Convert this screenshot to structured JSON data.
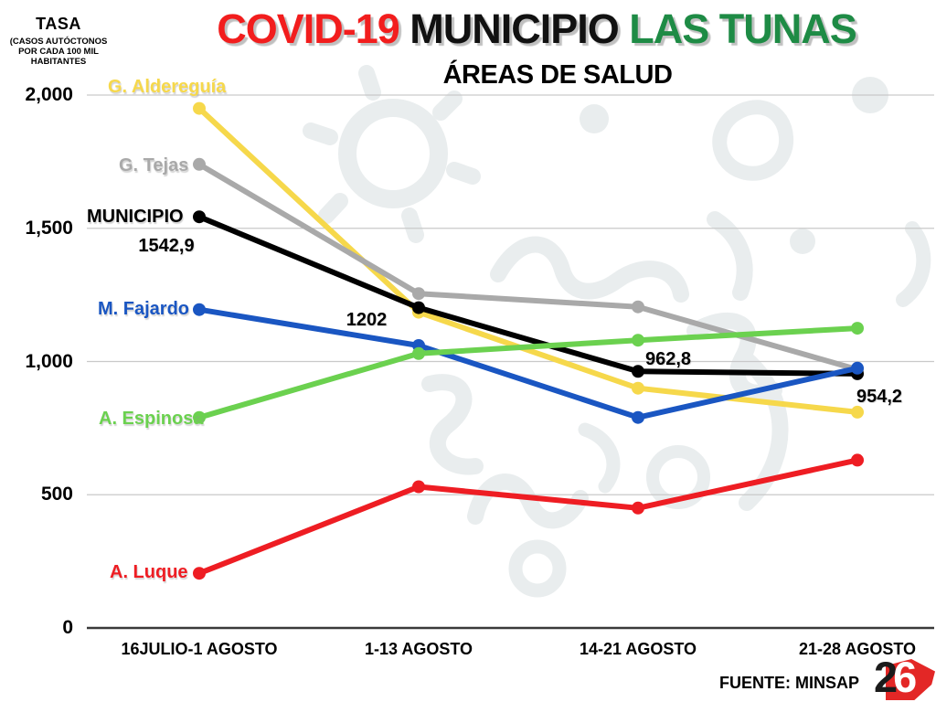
{
  "header": {
    "title_part1": "COVID-19",
    "title_part2": " MUNICIPIO ",
    "title_part3": "LAS TUNAS",
    "title_color1": "#F21D1D",
    "title_color2": "#111111",
    "title_color3": "#1E8B45",
    "subtitle": "ÁREAS DE SALUD"
  },
  "y_axis": {
    "title": "TASA",
    "subtitle_lines": [
      "(CASOS AUTÓCTONOS",
      "POR CADA 100 MIL",
      "HABITANTES"
    ],
    "ticks": [
      {
        "label": "2,000",
        "value": 2000
      },
      {
        "label": "1,500",
        "value": 1500
      },
      {
        "label": "1,000",
        "value": 1000
      },
      {
        "label": "500",
        "value": 500
      },
      {
        "label": "0",
        "value": 0
      }
    ]
  },
  "footer": {
    "source": "FUENTE: MINSAP",
    "logo": {
      "digit_dark": "2",
      "digit_light": "6",
      "bg_color": "#E32726",
      "dark_color": "#1b1b1b",
      "light_color": "#ffffff"
    }
  },
  "chart_data": {
    "type": "line",
    "title": "COVID-19 MUNICIPIO LAS TUNAS",
    "subtitle": "ÁREAS DE SALUD",
    "ylabel": "TASA (CASOS AUTÓCTONOS POR CADA 100 MIL HABITANTES",
    "categories": [
      "16JULIO-1 AGOSTO",
      "1-13 AGOSTO",
      "14-21 AGOSTO",
      "21-28 AGOSTO"
    ],
    "ylim": [
      0,
      2000
    ],
    "yticks": [
      0,
      500,
      1000,
      1500,
      2000
    ],
    "grid": true,
    "legend_position": "left-of-first-point",
    "series": [
      {
        "name": "G. Aldereguía",
        "color": "#F6D84B",
        "values": [
          1950,
          1185,
          900,
          810
        ]
      },
      {
        "name": "G. Tejas",
        "color": "#A9A9A9",
        "values": [
          1740,
          1255,
          1205,
          970
        ]
      },
      {
        "name": "MUNICIPIO",
        "color": "#000000",
        "values": [
          1542.9,
          1202,
          962.8,
          954.2
        ]
      },
      {
        "name": "M. Fajardo",
        "color": "#1A56C2",
        "values": [
          1195,
          1060,
          790,
          975
        ]
      },
      {
        "name": "A. Espinosa",
        "color": "#6BD14F",
        "values": [
          790,
          1030,
          1080,
          1125
        ]
      },
      {
        "name": "A. Luque",
        "color": "#EE1D23",
        "values": [
          205,
          530,
          450,
          630
        ]
      }
    ],
    "data_labels": {
      "series": "MUNICIPIO",
      "texts": [
        "1542,9",
        "1202",
        "962,8",
        "954,2"
      ]
    },
    "source": "FUENTE: MINSAP"
  }
}
